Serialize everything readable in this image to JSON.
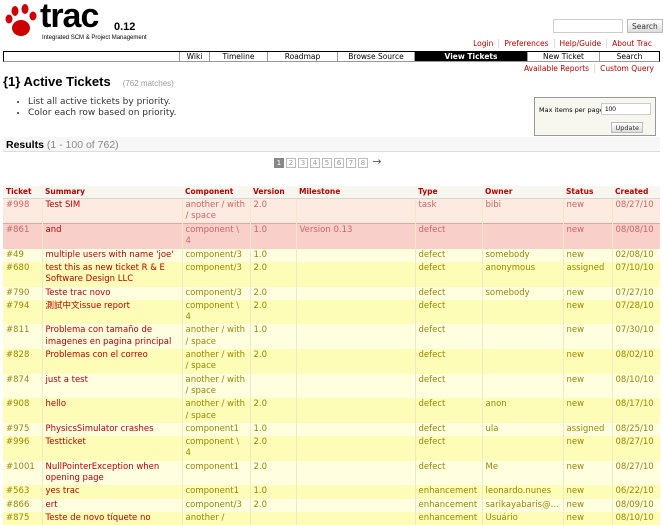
{
  "header": {
    "logo_text": "trac",
    "version": "0.12",
    "tagline": "Integrated SCM & Project Management",
    "search_button": "Search"
  },
  "metanav": [
    "Login",
    "Preferences",
    "Help/Guide",
    "About Trac"
  ],
  "mainnav": [
    {
      "label": "Wiki"
    },
    {
      "label": "Timeline"
    },
    {
      "label": "Roadmap"
    },
    {
      "label": "Browse Source"
    },
    {
      "label": "View Tickets",
      "active": true
    },
    {
      "label": "New Ticket"
    },
    {
      "label": "Search"
    }
  ],
  "ctxtnav": [
    "Available Reports",
    "Custom Query"
  ],
  "report": {
    "title": "{1} Active Tickets",
    "matches": "(762 matches)",
    "description": [
      "List all active tickets by priority.",
      "Color each row based on priority."
    ]
  },
  "prefs": {
    "label": "Max items per page",
    "value": "100",
    "update": "Update"
  },
  "results": {
    "title": "Results",
    "range": "(1 - 100 of 762)"
  },
  "paging": {
    "pages": [
      "1",
      "2",
      "3",
      "4",
      "5",
      "6",
      "7",
      "8"
    ],
    "current": "1",
    "next": "→"
  },
  "columns": [
    "Ticket",
    "Summary",
    "Component",
    "Version",
    "Milestone",
    "Type",
    "Owner",
    "Status",
    "Created"
  ],
  "rows": [
    [
      "#998",
      "Test SIM",
      "another / with / space",
      "2.0",
      "",
      "task",
      "bibi",
      "new",
      "08/27/10"
    ],
    [
      "#861",
      "and",
      "component \\ 4",
      "1.0",
      "Version 0.13",
      "defect",
      "",
      "new",
      "08/08/10"
    ],
    [
      "#49",
      "multiple users with name 'joe'",
      "component/3",
      "1.0",
      "",
      "defect",
      "somebody",
      "new",
      "02/08/10"
    ],
    [
      "#680",
      "test this as new ticket R & E Software Design LLC",
      "component/3",
      "2.0",
      "",
      "defect",
      "anonymous",
      "assigned",
      "07/10/10"
    ],
    [
      "#790",
      "Teste trac novo",
      "component/3",
      "2.0",
      "",
      "defect",
      "somebody",
      "new",
      "07/27/10"
    ],
    [
      "#794",
      "測試中文issue report",
      "component \\ 4",
      "2.0",
      "",
      "defect",
      "",
      "new",
      "07/28/10"
    ],
    [
      "#811",
      "Problema con tamaño de imagenes en pagina principal",
      "another / with / space",
      "1.0",
      "",
      "defect",
      "",
      "new",
      "07/30/10"
    ],
    [
      "#828",
      "Problemas con el correo",
      "another / with / space",
      "2.0",
      "",
      "defect",
      "",
      "new",
      "08/02/10"
    ],
    [
      "#874",
      "just a test",
      "another / with / space",
      "",
      "",
      "defect",
      "",
      "new",
      "08/10/10"
    ],
    [
      "#908",
      "hello",
      "another / with / space",
      "2.0",
      "",
      "defect",
      "anon",
      "new",
      "08/17/10"
    ],
    [
      "#975",
      "PhysicsSimulator crashes",
      "component1",
      "1.0",
      "",
      "defect",
      "ula",
      "assigned",
      "08/25/10"
    ],
    [
      "#996",
      "Testticket",
      "component \\ 4",
      "2.0",
      "",
      "defect",
      "",
      "new",
      "08/27/10"
    ],
    [
      "#1001",
      "NullPointerException when opening page",
      "component1",
      "2.0",
      "",
      "defect",
      "Me",
      "new",
      "08/27/10"
    ],
    [
      "#563",
      "yes trac",
      "component1",
      "1.0",
      "",
      "enhancement",
      "leonardo.nunes",
      "new",
      "06/22/10"
    ],
    [
      "#866",
      "ert",
      "component/3",
      "2.0",
      "",
      "enhancement",
      "sarikayabaris@…",
      "new",
      "08/09/10"
    ],
    [
      "#875",
      "Teste de novo tíquete no",
      "another /",
      "",
      "",
      "enhancement",
      "Usuário",
      "new",
      "08/10/10"
    ]
  ],
  "row_priority_classes": [
    "p1",
    "p2",
    "y0",
    "y1",
    "y0",
    "y1",
    "y0",
    "y1",
    "y0",
    "y1",
    "y0",
    "y1",
    "y0",
    "y1",
    "y0",
    "y1"
  ]
}
